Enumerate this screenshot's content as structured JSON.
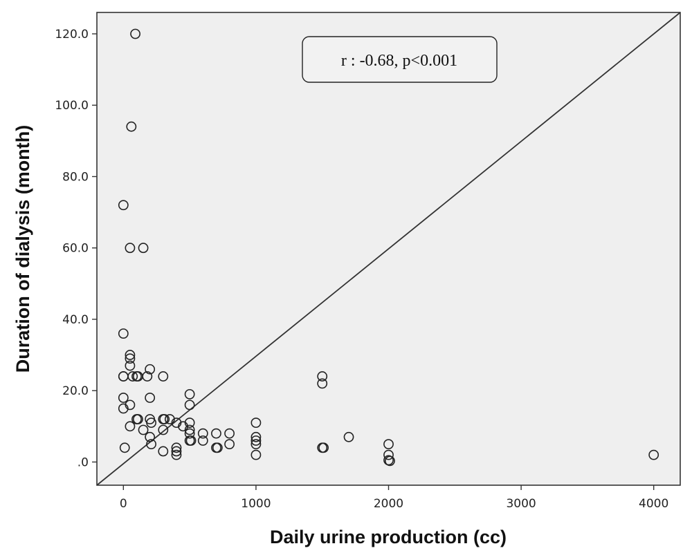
{
  "chart_data": {
    "type": "scatter",
    "title": "",
    "xlabel": "Daily urine production (cc)",
    "ylabel": "Duration of dialysis (month)",
    "xlim": [
      -200,
      4200
    ],
    "ylim": [
      -6.5,
      126
    ],
    "x_ticks": [
      0,
      1000,
      2000,
      3000,
      4000
    ],
    "x_tick_labels": [
      "0",
      "1000",
      "2000",
      "3000",
      "4000"
    ],
    "y_ticks": [
      0,
      20,
      40,
      60,
      80,
      100,
      120
    ],
    "y_tick_labels": [
      ".0",
      "20.0",
      "40.0",
      "60.0",
      "80.0",
      "100.0",
      "120.0"
    ],
    "annotation": "r : -0.68, p<0.001",
    "reference_line": {
      "from": [
        -200,
        -6.5
      ],
      "to": [
        4200,
        126
      ]
    },
    "grid": false,
    "background": "#efefef",
    "marker_color": "#222222",
    "series": [
      {
        "points": [
          [
            90,
            120
          ],
          [
            60,
            94
          ],
          [
            0,
            72
          ],
          [
            50,
            60
          ],
          [
            150,
            60
          ],
          [
            0,
            36
          ],
          [
            50,
            30
          ],
          [
            50,
            29
          ],
          [
            50,
            27
          ],
          [
            0,
            24
          ],
          [
            0,
            24
          ],
          [
            70,
            24
          ],
          [
            100,
            24
          ],
          [
            110,
            24
          ],
          [
            180,
            24
          ],
          [
            300,
            24
          ],
          [
            200,
            26
          ],
          [
            0,
            18
          ],
          [
            200,
            18
          ],
          [
            50,
            16
          ],
          [
            0,
            15
          ],
          [
            500,
            19
          ],
          [
            500,
            16
          ],
          [
            100,
            12
          ],
          [
            110,
            12
          ],
          [
            200,
            12
          ],
          [
            210,
            11
          ],
          [
            300,
            12
          ],
          [
            310,
            12
          ],
          [
            350,
            12
          ],
          [
            400,
            11
          ],
          [
            450,
            10
          ],
          [
            500,
            11
          ],
          [
            500,
            9
          ],
          [
            500,
            8
          ],
          [
            500,
            6
          ],
          [
            510,
            6
          ],
          [
            600,
            8
          ],
          [
            600,
            6
          ],
          [
            700,
            8
          ],
          [
            700,
            4
          ],
          [
            710,
            4
          ],
          [
            800,
            8
          ],
          [
            800,
            5
          ],
          [
            50,
            10
          ],
          [
            150,
            9
          ],
          [
            200,
            7
          ],
          [
            210,
            5
          ],
          [
            300,
            9
          ],
          [
            300,
            3
          ],
          [
            400,
            4
          ],
          [
            400,
            3
          ],
          [
            400,
            2
          ],
          [
            10,
            4
          ],
          [
            1000,
            11
          ],
          [
            1000,
            7
          ],
          [
            1000,
            6
          ],
          [
            1000,
            5
          ],
          [
            1000,
            2
          ],
          [
            1500,
            24
          ],
          [
            1500,
            22
          ],
          [
            1500,
            4
          ],
          [
            1510,
            4
          ],
          [
            1700,
            7
          ],
          [
            2000,
            5
          ],
          [
            2000,
            2
          ],
          [
            2000,
            0.5
          ],
          [
            2010,
            0.3
          ],
          [
            4000,
            2
          ]
        ]
      }
    ]
  }
}
